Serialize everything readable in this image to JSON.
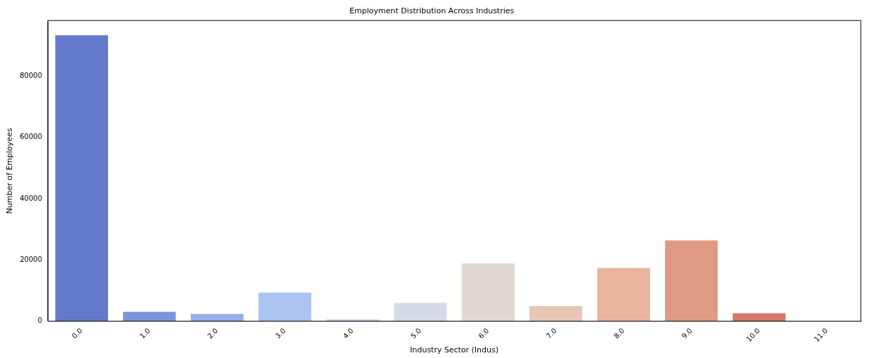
{
  "chart_data": {
    "type": "bar",
    "title": "Employment Distribution Across Industries",
    "xlabel": "Industry Sector (Indus)",
    "ylabel": "Number of Employees",
    "categories": [
      "0.0",
      "1.0",
      "2.0",
      "3.0",
      "4.0",
      "5.0",
      "6.0",
      "7.0",
      "8.0",
      "9.0",
      "10.0",
      "11.0"
    ],
    "values": [
      93600,
      3300,
      2600,
      9600,
      900,
      6200,
      19100,
      5200,
      17600,
      26600,
      2800,
      0
    ],
    "colors": [
      "#6479cc",
      "#7a94de",
      "#94aee8",
      "#abc4f2",
      "#c4d2ee",
      "#d5dbe5",
      "#e2d8d2",
      "#e9c6b4",
      "#eab39d",
      "#e09a83",
      "#d3786a",
      "#b84a4a"
    ],
    "ylim": [
      0,
      98200
    ],
    "yticks": [
      0,
      20000,
      40000,
      60000,
      80000
    ],
    "grid": false,
    "legend": false
  }
}
